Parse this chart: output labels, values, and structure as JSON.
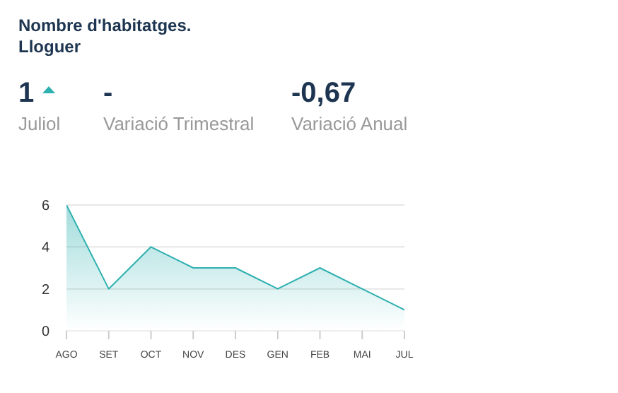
{
  "chart_data": {
    "type": "area",
    "title": "Nombre d'habitatges. Lloguer",
    "annotations": [
      "1",
      "Juliol",
      "-",
      "Variació Trimestral",
      "-0,67",
      "Variació Anual"
    ],
    "categories": [
      "AGO",
      "SET",
      "OCT",
      "NOV",
      "DES",
      "GEN",
      "FEB",
      "MAI",
      "JUL"
    ],
    "values": [
      6,
      2,
      4,
      3,
      3,
      2,
      3,
      2,
      1
    ],
    "color": "#2fb0b0",
    "ylim": [
      0,
      6
    ],
    "yticks": [
      0,
      2,
      4,
      6
    ],
    "grid": "y"
  }
}
